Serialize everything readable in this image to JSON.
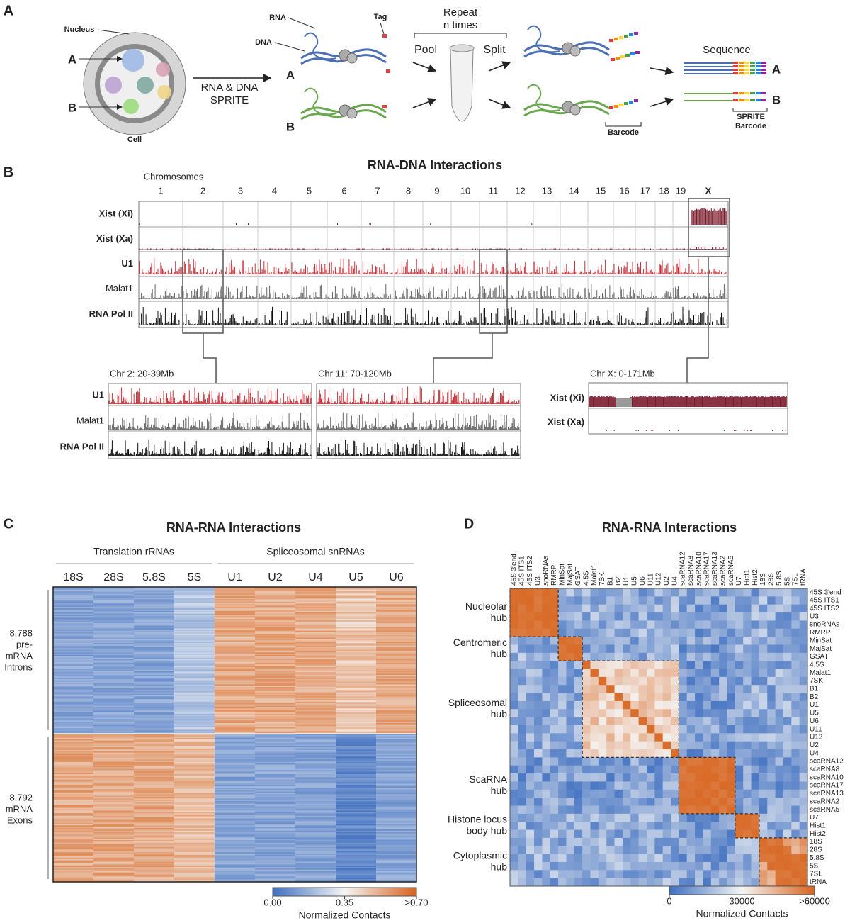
{
  "panel_a": {
    "label": "A",
    "nucleus": "Nucleus",
    "cell": "Cell",
    "cluster_a": "A",
    "cluster_b": "B",
    "step": [
      "RNA & DNA",
      "SPRITE"
    ],
    "rna": "RNA",
    "dna": "DNA",
    "tag": "Tag",
    "complex_a": "A",
    "complex_b": "B",
    "repeat": "Repeat",
    "repeat_n": "n times",
    "pool": "Pool",
    "split": "Split",
    "barcode": "Barcode",
    "sequence": "Sequence",
    "read_a": "A",
    "read_b": "B",
    "sprite_barcode": [
      "SPRITE",
      "Barcode"
    ]
  },
  "panel_b": {
    "label": "B",
    "title": "RNA-DNA Interactions",
    "chromosomes_label": "Chromosomes",
    "chromosomes": [
      "1",
      "2",
      "3",
      "4",
      "5",
      "6",
      "7",
      "8",
      "9",
      "10",
      "11",
      "12",
      "13",
      "14",
      "15",
      "16",
      "17",
      "18",
      "19",
      "X"
    ],
    "tracks": [
      {
        "name": "Xist (Xi)",
        "color": "#7b1c2c"
      },
      {
        "name": "Xist (Xa)",
        "color": "#7b1c2c"
      },
      {
        "name": "U1",
        "color": "#c8323a"
      },
      {
        "name": "Malat1",
        "color": "#666666"
      },
      {
        "name": "RNA Pol II",
        "color": "#111111"
      }
    ],
    "zooms": [
      {
        "title": "Chr 2: 20-39Mb",
        "tracks": [
          "U1",
          "Malat1",
          "RNA Pol II"
        ]
      },
      {
        "title": "Chr 11: 70-120Mb"
      },
      {
        "title": "Chr X: 0-171Mb",
        "tracks": [
          "Xist (Xi)",
          "Xist (Xa)"
        ]
      }
    ]
  },
  "panel_c": {
    "label": "C",
    "title": "RNA-RNA Interactions",
    "groups": [
      {
        "name": "Translation rRNAs",
        "columns": [
          "18S",
          "28S",
          "5.8S",
          "5S"
        ]
      },
      {
        "name": "Spliceosomal snRNAs",
        "columns": [
          "U1",
          "U2",
          "U4",
          "U5",
          "U6"
        ]
      }
    ],
    "row_groups": [
      [
        "8,788",
        "pre-",
        "mRNA",
        "Introns"
      ],
      [
        "8,792",
        "mRNA",
        "Exons"
      ]
    ],
    "colorbar": {
      "lim": [
        0,
        0.7
      ],
      "ticks": [
        {
          "value": 0,
          "label": "0.00"
        },
        0.35,
        {
          "value": 0.7,
          "label": ">0.70"
        }
      ],
      "label": "Normalized Contacts"
    }
  },
  "panel_d": {
    "label": "D",
    "title": "RNA-RNA Interactions",
    "rnas": [
      "45S 3'end",
      "45S ITS1",
      "45S ITS2",
      "U3",
      "snoRNAs",
      "RMRP",
      "MinSat",
      "MajSat",
      "GSAT",
      "4.5S",
      "Malat1",
      "7SK",
      "B1",
      "B2",
      "U1",
      "U5",
      "U6",
      "U11",
      "U12",
      "U2",
      "U4",
      "scaRNA12",
      "scaRNA8",
      "scaRNA10",
      "scaRNA17",
      "scaRNA13",
      "scaRNA2",
      "scaRNA5",
      "U7",
      "Hist1",
      "Hist2",
      "18S",
      "28S",
      "5.8S",
      "5S",
      "7SL",
      "tRNA"
    ],
    "hubs": [
      [
        "Nucleolar",
        "hub"
      ],
      [
        "Centromeric",
        "hub"
      ],
      [
        "Spliceosomal",
        "hub"
      ],
      [
        "ScaRNA",
        "hub"
      ],
      [
        "Histone locus",
        "body hub"
      ],
      [
        "Cytoplasmic",
        "hub"
      ]
    ],
    "colorbar": {
      "lim": [
        0,
        60000
      ],
      "ticks": [
        0,
        30000,
        {
          "value": 60000,
          "label": ">60000"
        }
      ],
      "label": "Normalized Contacts"
    }
  }
}
